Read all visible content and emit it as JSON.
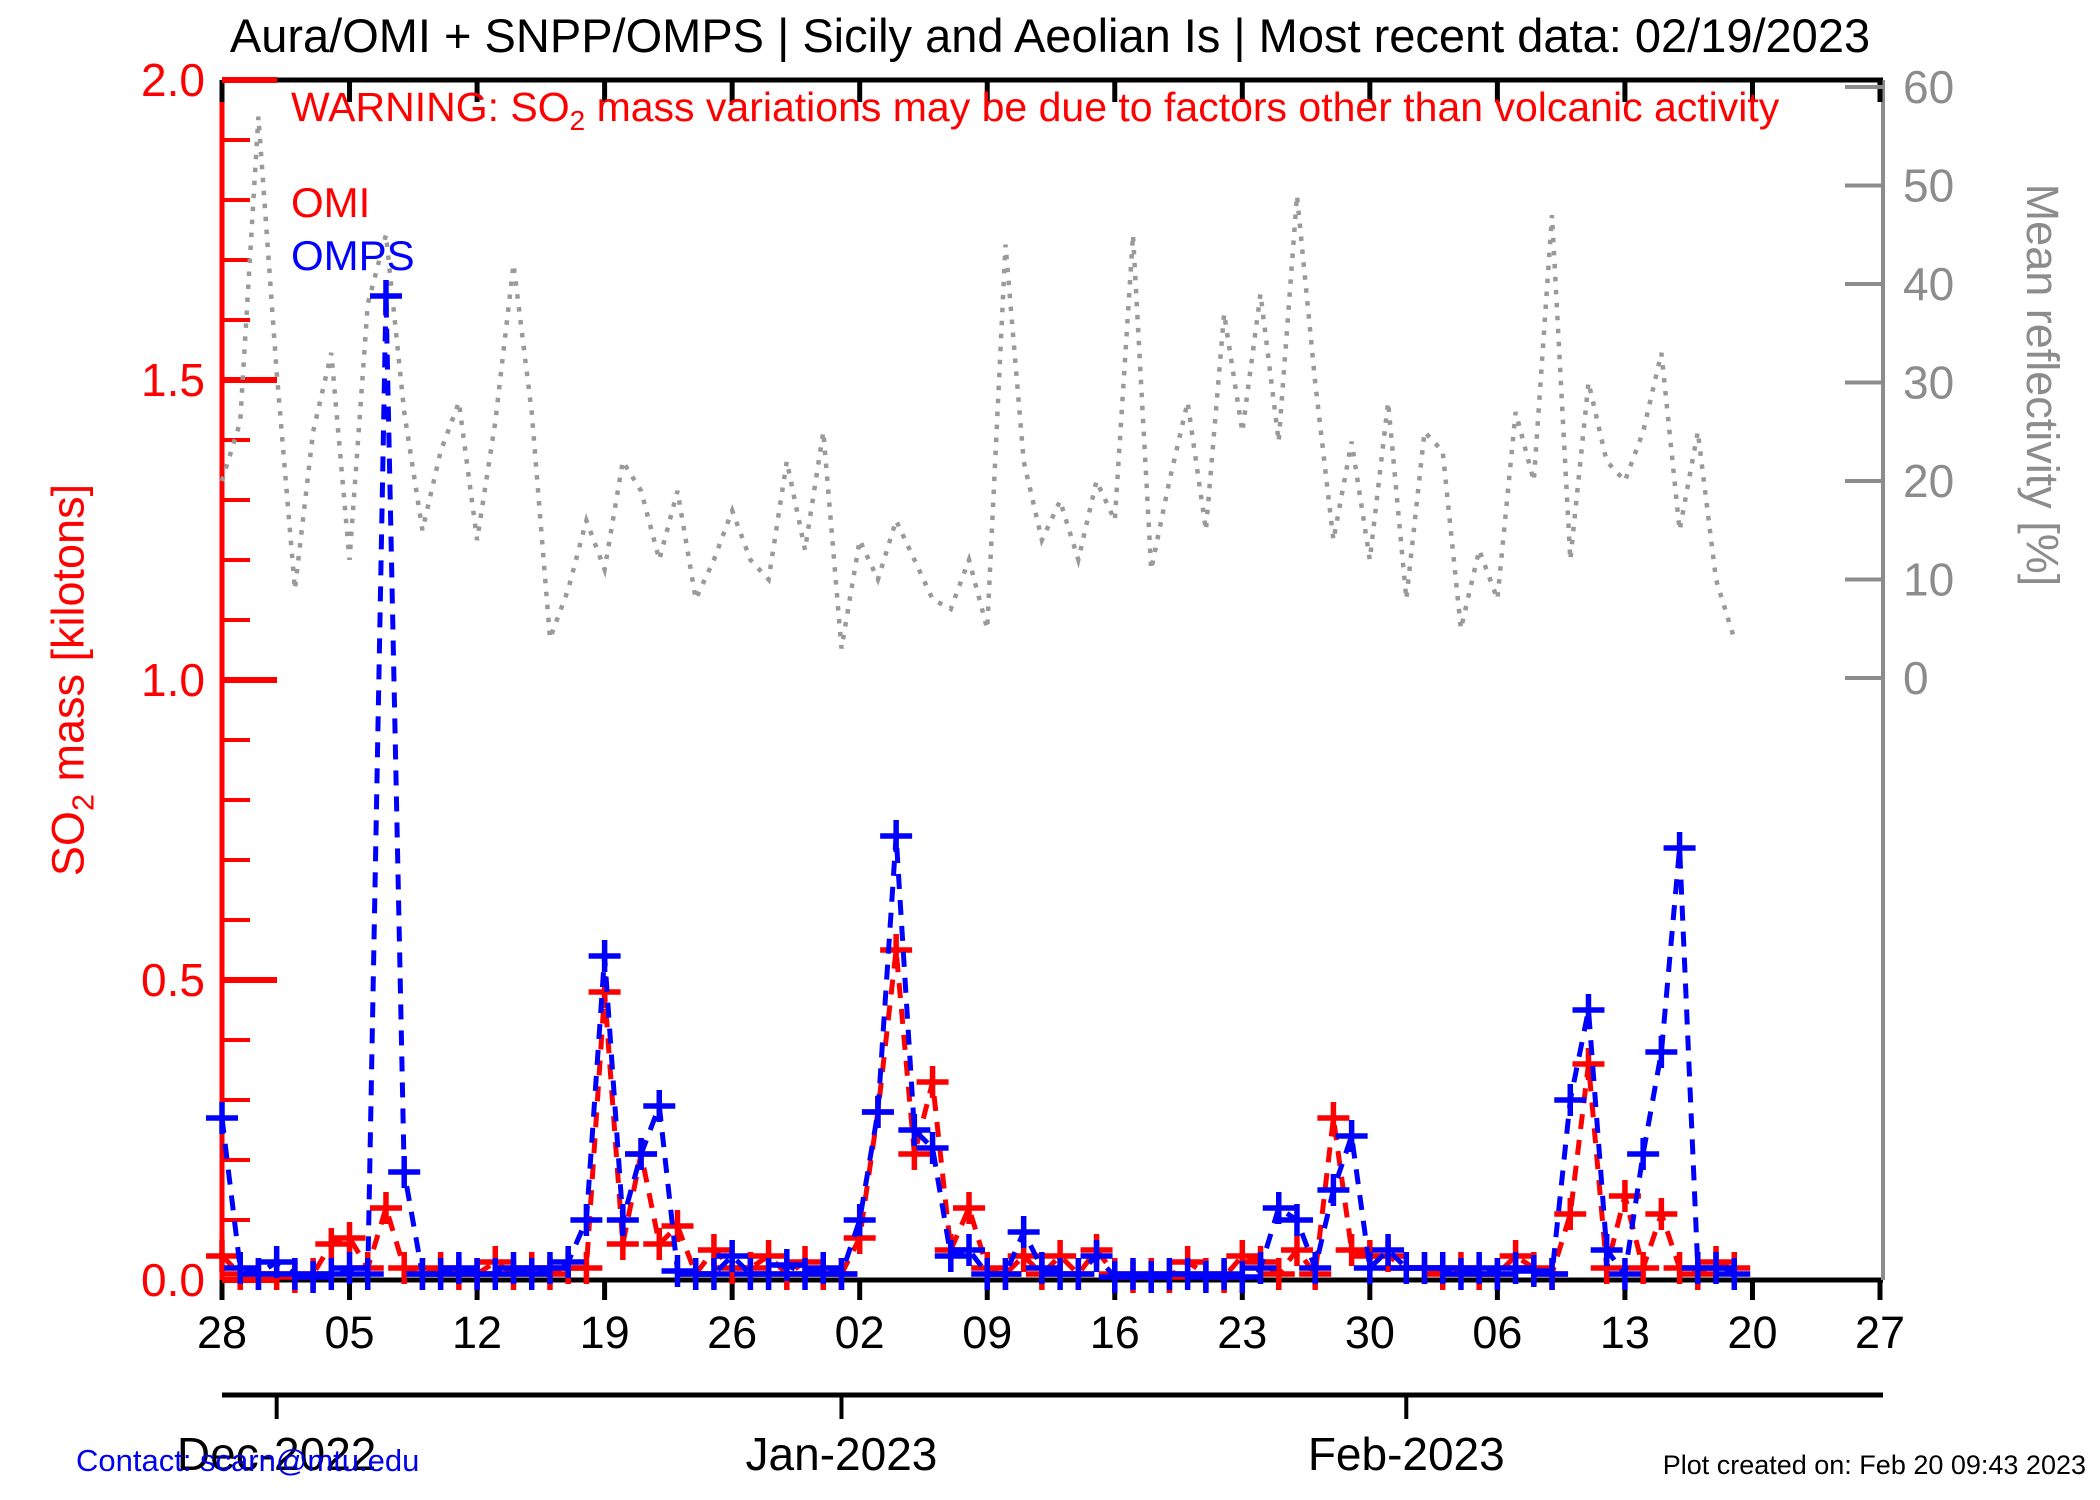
{
  "title": "Aura/OMI + SNPP/OMPS | Sicily and Aeolian Is | Most recent data: 02/19/2023",
  "warning": {
    "prefix": "WARNING: SO",
    "sub": "2",
    "suffix": " mass variations may be due to factors other than volcanic activity"
  },
  "y_left_label": {
    "prefix": "SO",
    "sub": "2",
    "suffix": " mass [kilotons]"
  },
  "footer": {
    "contact": "Contact: scarn@mtu.edu",
    "created": "Plot created on: Feb 20 09:43 2023"
  },
  "colors": {
    "omi": "#ff0000",
    "omps": "#0000ff",
    "reflectivity": "#9a9a9a",
    "right_axis": "#8c8c8c",
    "axis_black": "#000000",
    "contact_blue": "#0000ee"
  },
  "chart_data": {
    "type": "line",
    "title": "Aura/OMI + SNPP/OMPS | Sicily and Aeolian Is | Most recent data: 02/19/2023",
    "grid": false,
    "legend_position": "top-left-inside",
    "x_axis": {
      "tick_labels": [
        "28",
        "05",
        "12",
        "19",
        "26",
        "02",
        "09",
        "16",
        "23",
        "30",
        "06",
        "13",
        "20",
        "27"
      ],
      "tick_days": [
        0,
        7,
        14,
        21,
        28,
        35,
        42,
        49,
        56,
        63,
        70,
        77,
        84,
        91
      ],
      "total_days": 91,
      "month_ticks": [
        {
          "label": "Dec-2022",
          "day": 3
        },
        {
          "label": "Jan-2023",
          "day": 34
        },
        {
          "label": "Feb-2023",
          "day": 65
        }
      ]
    },
    "y_left": {
      "label": "SO2 mass [kilotons]",
      "color": "#ff0000",
      "min": 0,
      "max": 2,
      "tick_values": [
        0,
        0.5,
        1,
        1.5,
        2
      ],
      "tick_labels": [
        "0.0",
        "0.5",
        "1.0",
        "1.5",
        "2.0"
      ],
      "minor_step": 0.1
    },
    "y_right": {
      "label": "Mean reflectivity [%]",
      "color": "#8c8c8c",
      "min": 0,
      "max": 60,
      "tick_values": [
        0,
        10,
        20,
        30,
        40,
        50,
        60
      ],
      "tick_labels": [
        "0",
        "10",
        "20",
        "30",
        "40",
        "50",
        "60"
      ]
    },
    "dates": [
      "2022-11-28",
      "2022-11-29",
      "2022-11-30",
      "2022-12-01",
      "2022-12-02",
      "2022-12-03",
      "2022-12-04",
      "2022-12-05",
      "2022-12-06",
      "2022-12-07",
      "2022-12-08",
      "2022-12-09",
      "2022-12-10",
      "2022-12-11",
      "2022-12-12",
      "2022-12-13",
      "2022-12-14",
      "2022-12-15",
      "2022-12-16",
      "2022-12-17",
      "2022-12-18",
      "2022-12-19",
      "2022-12-20",
      "2022-12-21",
      "2022-12-22",
      "2022-12-23",
      "2022-12-24",
      "2022-12-25",
      "2022-12-26",
      "2022-12-27",
      "2022-12-28",
      "2022-12-29",
      "2022-12-30",
      "2022-12-31",
      "2023-01-01",
      "2023-01-02",
      "2023-01-03",
      "2023-01-04",
      "2023-01-05",
      "2023-01-06",
      "2023-01-07",
      "2023-01-08",
      "2023-01-09",
      "2023-01-10",
      "2023-01-11",
      "2023-01-12",
      "2023-01-13",
      "2023-01-14",
      "2023-01-15",
      "2023-01-16",
      "2023-01-17",
      "2023-01-18",
      "2023-01-19",
      "2023-01-20",
      "2023-01-21",
      "2023-01-22",
      "2023-01-23",
      "2023-01-24",
      "2023-01-25",
      "2023-01-26",
      "2023-01-27",
      "2023-01-28",
      "2023-01-29",
      "2023-01-30",
      "2023-01-31",
      "2023-02-01",
      "2023-02-02",
      "2023-02-03",
      "2023-02-04",
      "2023-02-05",
      "2023-02-06",
      "2023-02-07",
      "2023-02-08",
      "2023-02-09",
      "2023-02-10",
      "2023-02-11",
      "2023-02-12",
      "2023-02-13",
      "2023-02-14",
      "2023-02-15",
      "2023-02-16",
      "2023-02-17",
      "2023-02-18",
      "2023-02-19"
    ],
    "series": [
      {
        "name": "OMI",
        "color": "#ff0000",
        "axis": "left",
        "style": "dashed-plus",
        "unit": "kilotons",
        "values": [
          0.04,
          0.01,
          0.01,
          0.01,
          0.005,
          0.01,
          0.06,
          0.07,
          0.02,
          0.12,
          0.02,
          0.01,
          0.02,
          0.01,
          0.01,
          0.03,
          0.01,
          0.02,
          0.01,
          0.02,
          0.02,
          0.48,
          0.06,
          0.21,
          0.06,
          0.09,
          0.01,
          0.05,
          0.02,
          0.02,
          0.04,
          0.01,
          0.03,
          0.01,
          0.01,
          0.07,
          0.28,
          0.55,
          0.21,
          0.33,
          0.05,
          0.12,
          0.02,
          0.01,
          0.04,
          0.01,
          0.04,
          0.01,
          0.05,
          0.01,
          0.005,
          0.01,
          0.005,
          0.03,
          0.01,
          0.005,
          0.04,
          0.03,
          0.01,
          0.05,
          0.01,
          0.27,
          0.05,
          0.04,
          0.04,
          0.02,
          0.02,
          0.01,
          0.02,
          0.01,
          0.01,
          0.04,
          0.02,
          0.01,
          0.11,
          0.36,
          0.02,
          0.14,
          0.02,
          0.11,
          0.02,
          0.01,
          0.03,
          0.02
        ]
      },
      {
        "name": "OMPS",
        "color": "#0000ff",
        "axis": "left",
        "style": "dashed-plus",
        "unit": "kilotons",
        "values": [
          0.27,
          0.02,
          0.01,
          0.03,
          0.01,
          0.005,
          0.01,
          0.02,
          0.01,
          1.64,
          0.18,
          0.01,
          0.01,
          0.02,
          0.01,
          0.01,
          0.02,
          0.01,
          0.02,
          0.03,
          0.1,
          0.54,
          0.1,
          0.21,
          0.29,
          0.015,
          0.01,
          0.01,
          0.04,
          0.01,
          0.01,
          0.025,
          0.01,
          0.02,
          0.01,
          0.1,
          0.28,
          0.74,
          0.25,
          0.22,
          0.04,
          0.05,
          0.01,
          0.01,
          0.08,
          0.02,
          0.01,
          0.01,
          0.04,
          0.005,
          0.01,
          0.005,
          0.01,
          0.01,
          0.005,
          0.01,
          0.005,
          0.02,
          0.12,
          0.1,
          0.02,
          0.15,
          0.24,
          0.02,
          0.05,
          0.02,
          0.02,
          0.02,
          0.01,
          0.02,
          0.01,
          0.02,
          0.015,
          0.01,
          0.3,
          0.45,
          0.05,
          0.01,
          0.21,
          0.38,
          0.72,
          0.02,
          0.02,
          0.01
        ]
      },
      {
        "name": "Mean reflectivity",
        "color": "#9a9a9a",
        "axis": "right",
        "style": "dotted",
        "unit": "%",
        "values": [
          20,
          26,
          57,
          31,
          9,
          25,
          33,
          12,
          38,
          45,
          27,
          15,
          23,
          28,
          14,
          26,
          42,
          27,
          4,
          9,
          16,
          11,
          22,
          19,
          12,
          19,
          8,
          12,
          17,
          12,
          10,
          22,
          13,
          25,
          3,
          14,
          10,
          16,
          12,
          8,
          7,
          12,
          5,
          44,
          22,
          14,
          18,
          12,
          20,
          16,
          45,
          11,
          20,
          28,
          15,
          37,
          25,
          39,
          24,
          49,
          30,
          14,
          24,
          12,
          28,
          8,
          25,
          23,
          5,
          13,
          8,
          27,
          20,
          47,
          12,
          30,
          22,
          20,
          25,
          33,
          15,
          25,
          10,
          4
        ]
      }
    ]
  }
}
